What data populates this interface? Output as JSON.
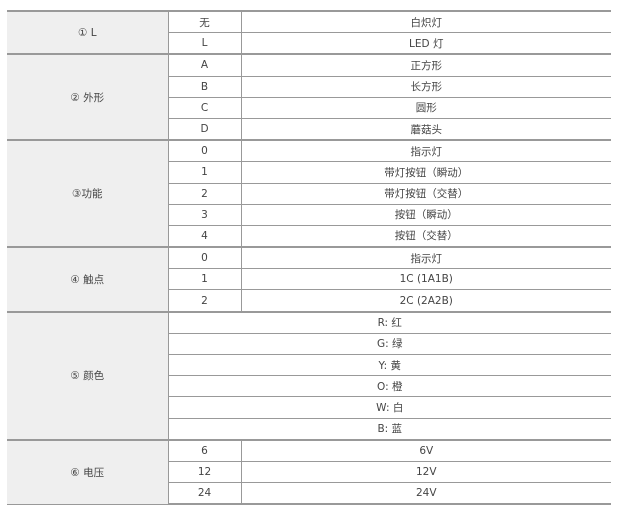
{
  "groups": [
    {
      "label": "① L",
      "rows": [
        [
          "无",
          "白炽灯"
        ],
        [
          "L",
          "LED 灯"
        ]
      ]
    },
    {
      "label": "② 外形",
      "rows": [
        [
          "A",
          "正方形"
        ],
        [
          "B",
          "长方形"
        ],
        [
          "C",
          "圆形"
        ],
        [
          "D",
          "蘑菇头"
        ]
      ]
    },
    {
      "label": "③功能",
      "rows": [
        [
          "0",
          "指示灯"
        ],
        [
          "1",
          "带灯按钮（瞬动）"
        ],
        [
          "2",
          "带灯按钮（交替）"
        ],
        [
          "3",
          "按钮（瞬动）"
        ],
        [
          "4",
          "按钮（交替）"
        ]
      ]
    },
    {
      "label": "④ 触点",
      "rows": [
        [
          "0",
          "指示灯"
        ],
        [
          "1",
          "1C (1A1B)"
        ],
        [
          "2",
          "2C (2A2B)"
        ]
      ]
    },
    {
      "label": "⑤ 颜色",
      "rows": [
        [
          "R: 红"
        ],
        [
          "G: 绿"
        ],
        [
          "Y: 黄"
        ],
        [
          "O: 橙"
        ],
        [
          "W: 白"
        ],
        [
          "B: 蓝"
        ]
      ]
    },
    {
      "label": "⑥ 电压",
      "rows": [
        [
          "6",
          "6V"
        ],
        [
          "12",
          "12V"
        ],
        [
          "24",
          "24V"
        ]
      ]
    }
  ]
}
